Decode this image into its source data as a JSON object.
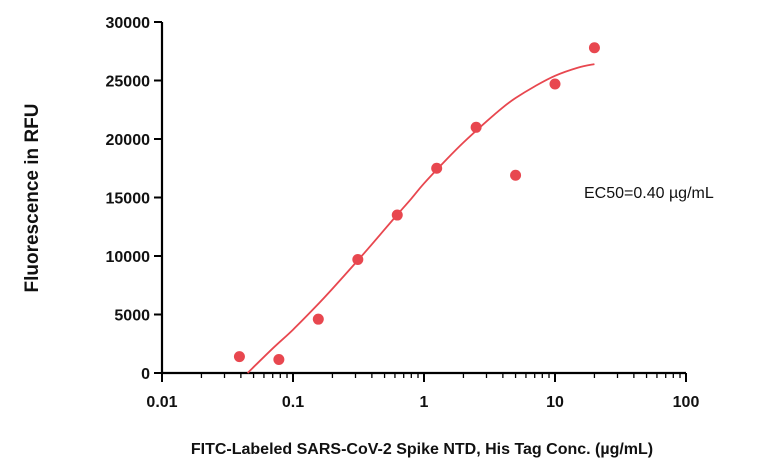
{
  "chart_data": {
    "type": "scatter",
    "xlabel": "FITC-Labeled SARS-CoV-2 Spike NTD, His Tag Conc. (µg/mL)",
    "ylabel": "Fluorescence in RFU",
    "annotation": "EC50=0.40 µg/mL",
    "x_scale": "log",
    "xlim": [
      0.01,
      100
    ],
    "ylim": [
      0,
      30000
    ],
    "x_ticks": [
      0.01,
      0.1,
      1,
      10,
      100
    ],
    "x_tick_labels": [
      "0.01",
      "0.1",
      "1",
      "10",
      "100"
    ],
    "y_ticks": [
      0,
      5000,
      10000,
      15000,
      20000,
      25000,
      30000
    ],
    "y_tick_labels": [
      "0",
      "5000",
      "10000",
      "15000",
      "20000",
      "25000",
      "30000"
    ],
    "grid": false,
    "series": [
      {
        "color": "#e8474f",
        "x": [
          0.039,
          0.078,
          0.156,
          0.3125,
          0.625,
          1.25,
          2.5,
          5,
          10,
          20
        ],
        "y": [
          1400,
          1150,
          4600,
          9700,
          13500,
          17500,
          21000,
          16900,
          24700,
          27800
        ]
      }
    ],
    "fit_curve": {
      "color": "#e8474f",
      "x": [
        0.045,
        0.07,
        0.1,
        0.15,
        0.2,
        0.3,
        0.4,
        0.6,
        0.8,
        1,
        1.5,
        2,
        3,
        4,
        5,
        7,
        10,
        15,
        20
      ],
      "y": [
        0,
        2100,
        3700,
        5700,
        7200,
        9400,
        11000,
        13300,
        14900,
        16200,
        18300,
        19700,
        21500,
        22700,
        23500,
        24500,
        25400,
        26100,
        26400
      ]
    }
  }
}
